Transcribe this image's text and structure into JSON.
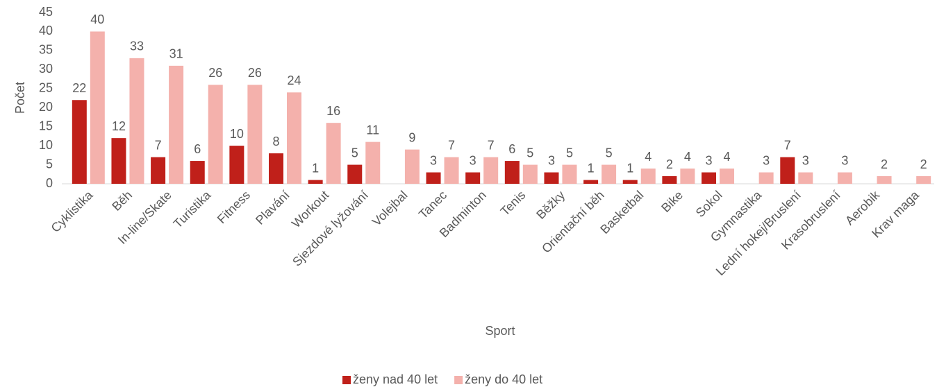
{
  "chart_data": {
    "type": "bar",
    "x_label": "Sport",
    "y_label": "Počet",
    "categories": [
      "Cyklistika",
      "Běh",
      "In-line/Skate",
      "Turistika",
      "Fitness",
      "Plavání",
      "Workout",
      "Sjezdové lyžování",
      "Volejbal",
      "Tanec",
      "Badminton",
      "Tenis",
      "Běžky",
      "Orientační běh",
      "Basketbal",
      "Bike",
      "Sokol",
      "Gymnastika",
      "Lední hokej/Bruslení",
      "Krasobruslení",
      "Aerobik",
      "Krav maga"
    ],
    "series": [
      {
        "name": "ženy nad 40 let",
        "color": "#c0201a",
        "values": [
          22,
          12,
          7,
          6,
          10,
          8,
          1,
          5,
          null,
          3,
          3,
          6,
          3,
          1,
          1,
          2,
          3,
          null,
          7,
          null,
          null,
          null
        ]
      },
      {
        "name": "ženy do 40 let",
        "color": "#f4b1ac",
        "values": [
          40,
          33,
          31,
          26,
          26,
          24,
          16,
          11,
          9,
          7,
          7,
          5,
          5,
          5,
          4,
          4,
          4,
          3,
          3,
          3,
          2,
          2
        ]
      }
    ],
    "ylim": [
      0,
      45
    ],
    "yticks": [
      0,
      5,
      10,
      15,
      20,
      25,
      30,
      35,
      40,
      45
    ],
    "grid": false,
    "legend": "bottom"
  }
}
